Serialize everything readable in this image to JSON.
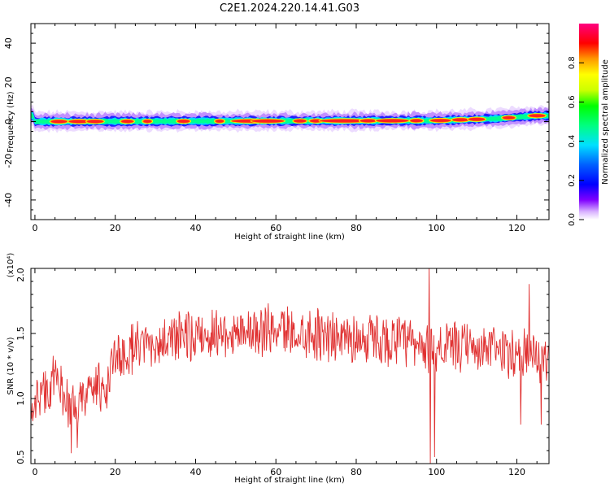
{
  "title": "C2E1.2024.220.14.41.G03",
  "chart_data": [
    {
      "type": "heatmap",
      "xlabel": "Height of straight line (km)",
      "ylabel": "Frequency (Hz)",
      "xlim": [
        -1,
        128
      ],
      "ylim": [
        -50,
        50
      ],
      "xticks": [
        0,
        20,
        40,
        60,
        80,
        100,
        120
      ],
      "yticks": [
        -40,
        -20,
        0,
        20,
        40
      ],
      "colorbar": {
        "label": "Normalized spectral amplitude",
        "range": [
          0,
          1
        ],
        "ticks": [
          "0.0",
          "0.2",
          "0.4",
          "0.6",
          "0.8"
        ],
        "colormap": "hsv-rainbow (violet→blue→cyan→green→yellow→orange→red→magenta)"
      },
      "band": {
        "center_frequency_hz": 0,
        "note": "narrow signal band around 0 Hz across all heights, rising to about 3 Hz near 125 km",
        "center_shift": [
          [
            0,
            0
          ],
          [
            100,
            0.5
          ],
          [
            115,
            1.5
          ],
          [
            125,
            3.0
          ],
          [
            128,
            3.0
          ]
        ]
      }
    },
    {
      "type": "line",
      "xlabel": "Height of straight line (km)",
      "ylabel": "SNR (10 * v/v)",
      "y_multiplier": "(x10⁴)",
      "xlim": [
        -1,
        128
      ],
      "ylim": [
        0.5,
        2.0
      ],
      "xticks": [
        0,
        20,
        40,
        60,
        80,
        100,
        120
      ],
      "yticks": [
        "0.5",
        "1.0",
        "1.5",
        "2.0"
      ],
      "line_color": "#e03030",
      "series": [
        {
          "trend_points": [
            [
              -1,
              0.95
            ],
            [
              2,
              1.05
            ],
            [
              5,
              1.15
            ],
            [
              8,
              1.0
            ],
            [
              10,
              0.85
            ],
            [
              12,
              1.0
            ],
            [
              15,
              1.1
            ],
            [
              18,
              1.05
            ],
            [
              19,
              1.25
            ],
            [
              22,
              1.35
            ],
            [
              30,
              1.42
            ],
            [
              40,
              1.48
            ],
            [
              50,
              1.52
            ],
            [
              60,
              1.52
            ],
            [
              70,
              1.5
            ],
            [
              80,
              1.46
            ],
            [
              90,
              1.44
            ],
            [
              97,
              1.38
            ],
            [
              100,
              1.4
            ],
            [
              110,
              1.38
            ],
            [
              120,
              1.36
            ],
            [
              127,
              1.3
            ]
          ],
          "spikes": [
            [
              9,
              0.58
            ],
            [
              10.5,
              0.62
            ],
            [
              98.2,
              2.02
            ],
            [
              98.4,
              0.5
            ],
            [
              99.5,
              0.55
            ],
            [
              126,
              0.8
            ],
            [
              123,
              1.88
            ],
            [
              121,
              0.8
            ]
          ]
        }
      ]
    }
  ]
}
